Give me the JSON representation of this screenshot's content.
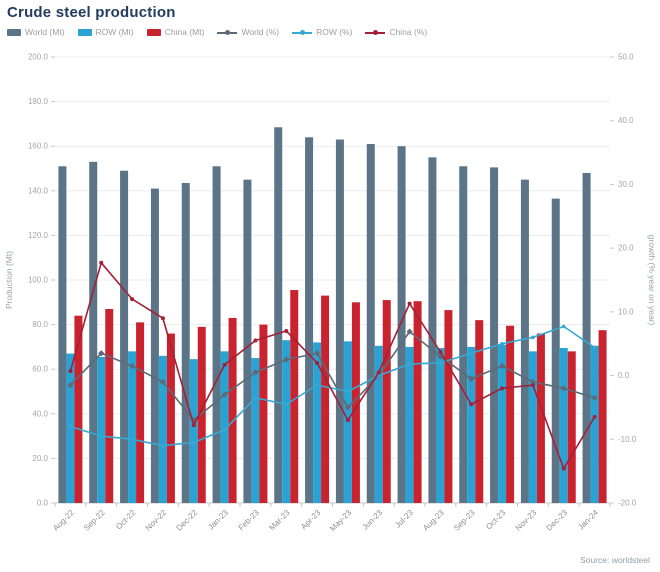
{
  "title": "Crude steel production",
  "source": "Source: worldsteel",
  "colors": {
    "title_text": "#223d5f",
    "world_bar": "#5b7487",
    "row_bar": "#29a2d4",
    "china_bar": "#c9232f",
    "world_line": "#5c6b77",
    "row_line": "#36a9d3",
    "china_line": "#a32037",
    "gridline": "#ececec",
    "axis_line": "#c8c8c8",
    "tick_text": "#a6a6a6"
  },
  "legend": [
    {
      "label": "World (Mt)",
      "swatch": "bar",
      "color": "#5b7487"
    },
    {
      "label": "ROW (Mt)",
      "swatch": "bar",
      "color": "#29a2d4"
    },
    {
      "label": "China (Mt)",
      "swatch": "bar",
      "color": "#c9232f"
    },
    {
      "label": "World (%)",
      "swatch": "line",
      "color": "#5c6b77"
    },
    {
      "label": "ROW (%)",
      "swatch": "line",
      "color": "#36a9d3"
    },
    {
      "label": "China (%)",
      "swatch": "line",
      "color": "#a32037"
    }
  ],
  "chart_data": {
    "type": "bar",
    "subtype": "grouped bars with overlaid lines (dual axis)",
    "title": "Crude steel production",
    "categories": [
      "Aug-22",
      "Sep-22",
      "Oct-22",
      "Nov-22",
      "Dec-22",
      "Jan-23",
      "Feb-23",
      "Mar-23",
      "Apr-23",
      "May-23",
      "Jun-23",
      "Jul-23",
      "Aug-23",
      "Sep-23",
      "Oct-23",
      "Nov-23",
      "Dec-23",
      "Jan-24"
    ],
    "series": [
      {
        "name": "World (Mt)",
        "type": "bar",
        "axis": "left",
        "color": "#5b7487",
        "values": [
          151,
          153,
          149,
          141,
          143.5,
          151,
          145,
          168.5,
          164,
          163,
          161,
          160,
          155,
          151,
          150.5,
          145,
          136.5,
          148
        ]
      },
      {
        "name": "ROW (Mt)",
        "type": "bar",
        "axis": "left",
        "color": "#29a2d4",
        "values": [
          67,
          65.5,
          68,
          66,
          64.5,
          68,
          65,
          73,
          72,
          72.5,
          70.5,
          70,
          69.5,
          70,
          71,
          68,
          69.5,
          70.5
        ]
      },
      {
        "name": "China (Mt)",
        "type": "bar",
        "axis": "left",
        "color": "#c9232f",
        "values": [
          84,
          87,
          81,
          76,
          79,
          83,
          80,
          95.5,
          93,
          90,
          91,
          90.5,
          86.5,
          82,
          79.5,
          76,
          68,
          77.5
        ]
      },
      {
        "name": "World (%)",
        "type": "line",
        "axis": "right",
        "color": "#5c6b77",
        "values": [
          -1.5,
          3.5,
          1.5,
          -1,
          -7,
          -3,
          0.5,
          2.5,
          3.5,
          -5,
          0,
          6.9,
          3,
          -0.5,
          1.5,
          -1,
          -2,
          -3.5
        ]
      },
      {
        "name": "ROW (%)",
        "type": "line",
        "axis": "right",
        "color": "#36a9d3",
        "values": [
          -8,
          -9.5,
          -10,
          -11,
          -10.5,
          -8.5,
          -3.5,
          -4.5,
          -1.5,
          -2.5,
          0,
          1.8,
          2,
          3.5,
          5,
          6,
          7.7,
          4.4
        ]
      },
      {
        "name": "China (%)",
        "type": "line",
        "axis": "right",
        "color": "#a32037",
        "values": [
          0.7,
          17.7,
          12,
          9,
          -7.8,
          1.7,
          5.5,
          7,
          2,
          -7,
          0.5,
          11.3,
          3.7,
          -4.5,
          -2,
          -1.5,
          -14.6,
          -6.5
        ]
      }
    ],
    "left_axis": {
      "label": "Production (Mt)",
      "min": 0,
      "max": 200,
      "step": 20,
      "decimals": 1
    },
    "right_axis": {
      "label": "growth (% year on year)",
      "min": -20,
      "max": 50,
      "step": 10,
      "decimals": 1
    },
    "xlabel": "",
    "ylabel": "Production (Mt)",
    "y2label": "growth (% year on year)",
    "legend_position": "top",
    "grid": "horizontal"
  }
}
